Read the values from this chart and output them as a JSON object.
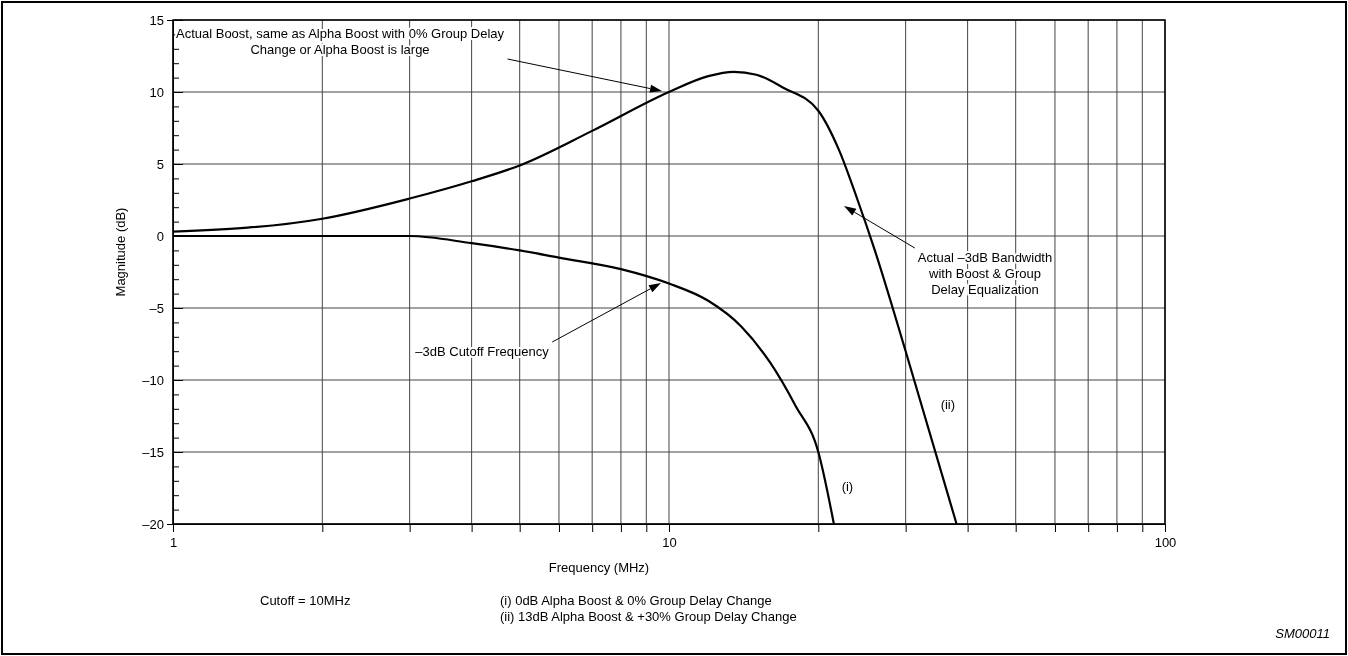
{
  "chart_data": {
    "type": "line",
    "xlabel": "Frequency (MHz)",
    "ylabel": "Magnitude (dB)",
    "log": "x",
    "grid": true,
    "marker": "none",
    "line_style": "solid",
    "xlim": [
      1,
      100
    ],
    "ylim": [
      -20,
      15
    ],
    "xticks": [
      1,
      {
        "value": 2,
        "label": null
      },
      {
        "value": 3,
        "label": null
      },
      {
        "value": 4,
        "label": null
      },
      {
        "value": 5,
        "label": null
      },
      {
        "value": 6,
        "label": null
      },
      {
        "value": 7,
        "label": null
      },
      {
        "value": 8,
        "label": null
      },
      {
        "value": 9,
        "label": null
      },
      10,
      {
        "value": 20,
        "label": null
      },
      {
        "value": 30,
        "label": null
      },
      {
        "value": 40,
        "label": null
      },
      {
        "value": 50,
        "label": null
      },
      {
        "value": 60,
        "label": null
      },
      {
        "value": 70,
        "label": null
      },
      {
        "value": 80,
        "label": null
      },
      {
        "value": 90,
        "label": null
      },
      100
    ],
    "yticks": [
      {
        "value": -20,
        "label": "–20"
      },
      {
        "value": -19,
        "label": null
      },
      {
        "value": -18,
        "label": null
      },
      {
        "value": -17,
        "label": null
      },
      {
        "value": -16,
        "label": null
      },
      {
        "value": -15,
        "label": "–15"
      },
      {
        "value": -14,
        "label": null
      },
      {
        "value": -13,
        "label": null
      },
      {
        "value": -12,
        "label": null
      },
      {
        "value": -11,
        "label": null
      },
      {
        "value": -10,
        "label": "–10"
      },
      {
        "value": -9,
        "label": null
      },
      {
        "value": -8,
        "label": null
      },
      {
        "value": -7,
        "label": null
      },
      {
        "value": -6,
        "label": null
      },
      {
        "value": -5,
        "label": "–5"
      },
      {
        "value": -4,
        "label": null
      },
      {
        "value": -3,
        "label": null
      },
      {
        "value": -2,
        "label": null
      },
      {
        "value": -1,
        "label": null
      },
      0,
      {
        "value": 1,
        "label": null
      },
      {
        "value": 2,
        "label": null
      },
      {
        "value": 3,
        "label": null
      },
      {
        "value": 4,
        "label": null
      },
      5,
      {
        "value": 6,
        "label": null
      },
      {
        "value": 7,
        "label": null
      },
      {
        "value": 8,
        "label": null
      },
      {
        "value": 9,
        "label": null
      },
      10,
      {
        "value": 11,
        "label": null
      },
      {
        "value": 12,
        "label": null
      },
      {
        "value": 13,
        "label": null
      },
      {
        "value": 14,
        "label": null
      },
      15
    ],
    "series": [
      {
        "name": "(i)",
        "color": "#000000",
        "x": [
          1,
          2,
          3,
          4,
          5,
          6,
          8,
          10,
          12,
          14,
          16,
          18,
          20,
          21.5
        ],
        "values": [
          0,
          0,
          0,
          -0.5,
          -1,
          -1.5,
          -2.3,
          -3.3,
          -4.5,
          -6.3,
          -8.8,
          -11.8,
          -15,
          -20
        ]
      },
      {
        "name": "(ii)",
        "color": "#000000",
        "x": [
          1,
          2,
          3,
          4,
          5,
          7,
          10,
          12,
          13.5,
          15,
          17,
          20,
          22,
          24,
          26,
          30,
          38
        ],
        "values": [
          0.3,
          1.2,
          2.6,
          3.8,
          4.9,
          7.3,
          10,
          11.1,
          11.4,
          11.2,
          10.3,
          8.7,
          6,
          2.5,
          -1,
          -8,
          -20
        ]
      }
    ],
    "annotations": [
      "Actual Boost, same as Alpha Boost with 0% Group Delay Change or Alpha Boost is large",
      "–3dB Cutoff Frequency",
      "Actual –3dB Bandwidth with Boost & Group Delay Equalization",
      "Cutoff = 10MHz",
      "(i) 0dB Alpha Boost & 0% Group Delay Change",
      "(ii) 13dB Alpha Boost & +30% Group Delay Change",
      "SM00011"
    ]
  }
}
